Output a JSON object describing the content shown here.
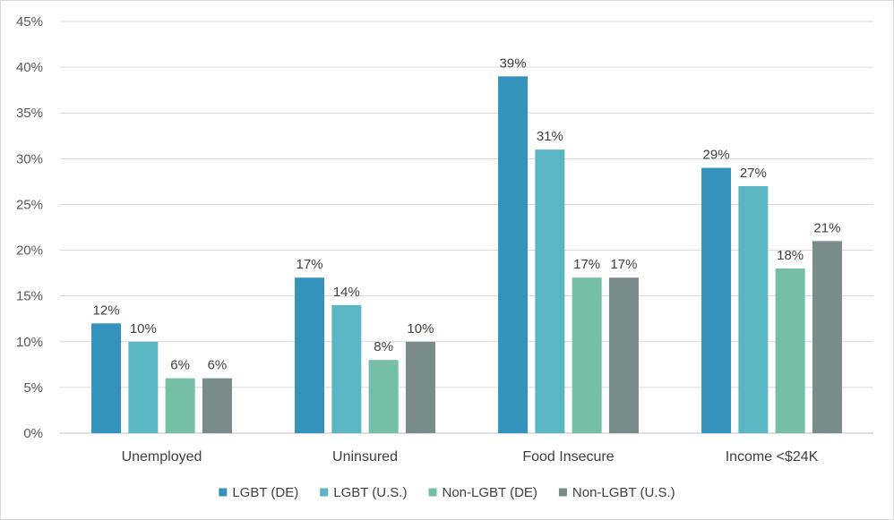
{
  "chart_data": {
    "type": "bar",
    "title": "",
    "xlabel": "",
    "ylabel": "",
    "categories": [
      "Unemployed",
      "Uninsured",
      "Food Insecure",
      "Income <$24K"
    ],
    "series": [
      {
        "name": "LGBT (DE)",
        "color": "#3592bc",
        "values": [
          12,
          17,
          39,
          29
        ],
        "labels": [
          "12%",
          "17%",
          "39%",
          "29%"
        ]
      },
      {
        "name": "LGBT (U.S.)",
        "color": "#5ab6c2",
        "values": [
          10,
          14,
          31,
          27
        ],
        "labels": [
          "10%",
          "14%",
          "31%",
          "27%"
        ]
      },
      {
        "name": "Non-LGBT (DE)",
        "color": "#74bfa6",
        "values": [
          6,
          8,
          17,
          18
        ],
        "labels": [
          "6%",
          "8%",
          "17%",
          "18%"
        ]
      },
      {
        "name": "Non-LGBT (U.S.)",
        "color": "#7a8b8c",
        "values": [
          6,
          10,
          17,
          21
        ],
        "labels": [
          "6%",
          "10%",
          "17%",
          "21%"
        ]
      }
    ],
    "ylim": [
      0,
      45
    ],
    "yticks": [
      0,
      5,
      10,
      15,
      20,
      25,
      30,
      35,
      40,
      45
    ],
    "ytick_labels": [
      "0%",
      "5%",
      "10%",
      "15%",
      "20%",
      "25%",
      "30%",
      "35%",
      "40%",
      "45%"
    ],
    "grid": true,
    "legend": "bottom"
  }
}
